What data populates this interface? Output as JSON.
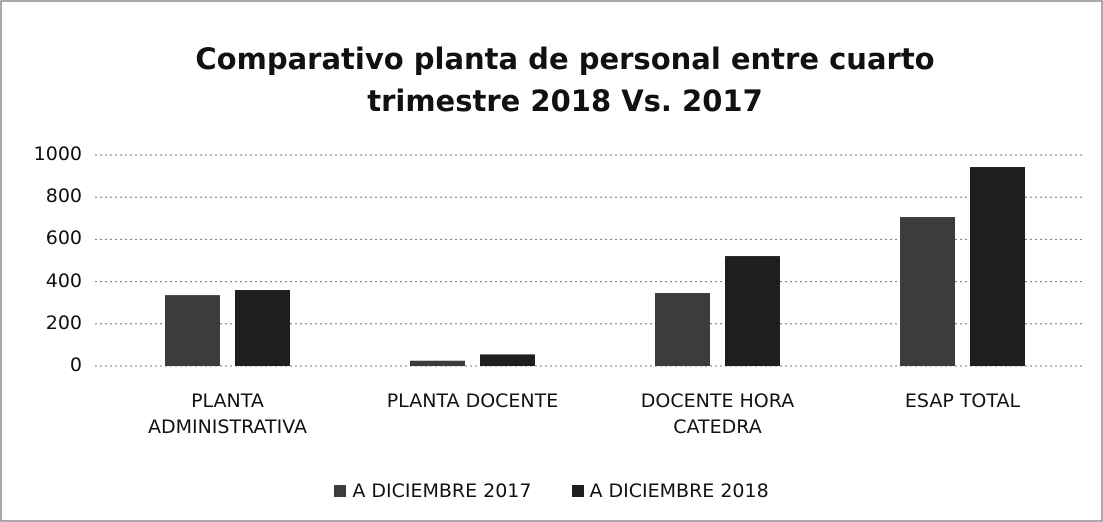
{
  "chart_data": {
    "type": "bar",
    "title": "Comparativo planta de personal entre cuarto trimestre 2018 Vs. 2017",
    "categories": [
      "PLANTA ADMINISTRATIVA",
      "PLANTA DOCENTE",
      "DOCENTE HORA CATEDRA",
      "ESAP TOTAL"
    ],
    "series": [
      {
        "name": "A DICIEMBRE 2017",
        "color": "#3c3c3c",
        "values": [
          336,
          25,
          346,
          706
        ]
      },
      {
        "name": "A DICIEMBRE 2018",
        "color": "#1e1e1e",
        "values": [
          360,
          55,
          521,
          943
        ]
      }
    ],
    "ylim": [
      0,
      1000
    ],
    "yticks": [
      0,
      200,
      400,
      600,
      800,
      1000
    ],
    "grid": true,
    "legend": "bottom"
  }
}
